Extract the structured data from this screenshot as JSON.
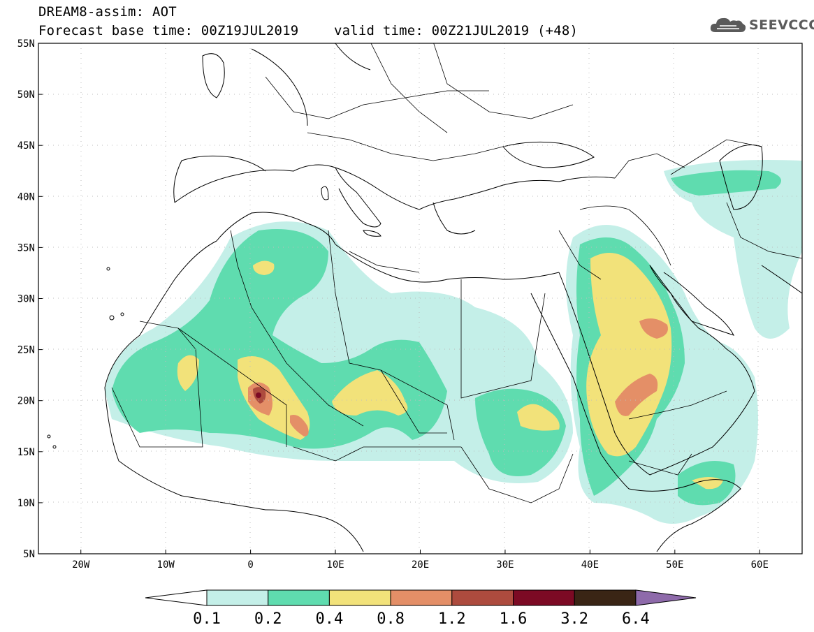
{
  "header": {
    "line1": "DREAM8-assim: AOT",
    "line2a": "Forecast base time: 00Z19JUL2019",
    "line2b": "valid time: 00Z21JUL2019 (+48)"
  },
  "logo": {
    "text": "SEEVCCC",
    "icon": "cloud-icon"
  },
  "map": {
    "lon_range": [
      -25,
      65
    ],
    "lat_range": [
      5,
      55
    ],
    "lon_ticks": [
      "20W",
      "10W",
      "0",
      "10E",
      "20E",
      "30E",
      "40E",
      "50E",
      "60E"
    ],
    "lat_ticks": [
      "55N",
      "50N",
      "45N",
      "40N",
      "35N",
      "30N",
      "25N",
      "20N",
      "15N",
      "10N",
      "5N"
    ]
  },
  "colorbar": {
    "labels": [
      "0.1",
      "0.2",
      "0.4",
      "0.8",
      "1.2",
      "1.6",
      "3.2",
      "6.4"
    ],
    "colors": [
      "#c4efe8",
      "#5fdcaf",
      "#f2e27a",
      "#e48f67",
      "#ad4b3e",
      "#7c0a24",
      "#3a2515",
      "#8e6aaa"
    ]
  }
}
